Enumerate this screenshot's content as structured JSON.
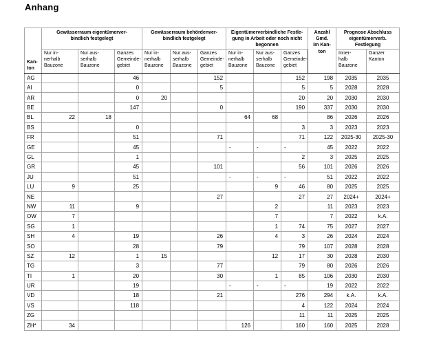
{
  "title": "Anhang",
  "colors": {
    "background": "#ffffff",
    "text": "#000000",
    "grid_thin": "#a8a8a8",
    "grid_thick": "#1f1f1f"
  },
  "table": {
    "header": {
      "kanton": "Kan-\nton",
      "anzahl": "Anzahl\nGmd.\nim Kan-\nton",
      "groups": [
        {
          "label": "Gewässerraum eigentümerver-\nbindlich festgelegt"
        },
        {
          "label": "Gewässerraum behördenver-\nbindlich festgelegt"
        },
        {
          "label": "Eigentümerverbindliche Festle-\ngung in Arbeit oder noch nicht\nbegonnen"
        },
        {
          "label": "Prognose Abschluss\neigentümerverb.\nFestlegung"
        }
      ],
      "subs": [
        "Nur in-\nnerhalb\nBauzone",
        "Nur aus-\nserhalb\nBauzone",
        "Ganzes\nGemeinde-\ngebiet",
        "Nur in-\nnerhalb\nBauzone",
        "Nur aus-\nserhalb\nBauzone",
        "Ganzes\nGemeinde-\ngebiet",
        "Nur in-\nnerhalb\nBauzone",
        "Nur aus-\nserhalb\nBauzone",
        "Ganzes\nGemeinde-\ngebiet",
        "Inner-\nhalb\nBauzone",
        "Ganzer\nKanton"
      ]
    },
    "rows": [
      {
        "kanton": "AG",
        "values": [
          "",
          "",
          "46",
          "",
          "",
          "152",
          "",
          "",
          "152",
          "198",
          "2035",
          "2035"
        ]
      },
      {
        "kanton": "AI",
        "values": [
          "",
          "",
          "0",
          "",
          "",
          "5",
          "",
          "",
          "5",
          "5",
          "2028",
          "2028"
        ]
      },
      {
        "kanton": "AR",
        "values": [
          "",
          "",
          "0",
          "20",
          "",
          "",
          "",
          "",
          "20",
          "20",
          "2030",
          "2030"
        ]
      },
      {
        "kanton": "BE",
        "values": [
          "",
          "",
          "147",
          "",
          "",
          "0",
          "",
          "",
          "190",
          "337",
          "2030",
          "2030"
        ]
      },
      {
        "kanton": "BL",
        "values": [
          "22",
          "18",
          "",
          "",
          "",
          "",
          "64",
          "68",
          "",
          "86",
          "2026",
          "2026"
        ]
      },
      {
        "kanton": "BS",
        "values": [
          "",
          "",
          "0",
          "",
          "",
          "",
          "",
          "",
          "3",
          "3",
          "2023",
          "2023"
        ]
      },
      {
        "kanton": "FR",
        "values": [
          "",
          "",
          "51",
          "",
          "",
          "71",
          "",
          "",
          "71",
          "122",
          "2025-30",
          "2025-30"
        ]
      },
      {
        "kanton": "GE",
        "values": [
          "",
          "",
          "45",
          "",
          "",
          "",
          "-",
          "-",
          "-",
          "45",
          "2022",
          "2022"
        ]
      },
      {
        "kanton": "GL",
        "values": [
          "",
          "",
          "1",
          "",
          "",
          "",
          "",
          "",
          "2",
          "3",
          "2025",
          "2025"
        ]
      },
      {
        "kanton": "GR",
        "values": [
          "",
          "",
          "45",
          "",
          "",
          "101",
          "",
          "",
          "56",
          "101",
          "2026",
          "2026"
        ]
      },
      {
        "kanton": "JU",
        "values": [
          "",
          "",
          "51",
          "",
          "",
          "",
          "-",
          "-",
          "-",
          "51",
          "2022",
          "2022"
        ]
      },
      {
        "kanton": "LU",
        "values": [
          "9",
          "",
          "25",
          "",
          "",
          "",
          "",
          "9",
          "46",
          "80",
          "2025",
          "2025"
        ]
      },
      {
        "kanton": "NE",
        "values": [
          "",
          "",
          "",
          "",
          "",
          "27",
          "",
          "",
          "27",
          "27",
          "2024+",
          "2024+"
        ]
      },
      {
        "kanton": "NW",
        "values": [
          "11",
          "",
          "9",
          "",
          "",
          "",
          "",
          "2",
          "",
          "11",
          "2023",
          "2023"
        ]
      },
      {
        "kanton": "OW",
        "values": [
          "7",
          "",
          "",
          "",
          "",
          "",
          "",
          "7",
          "",
          "7",
          "2022",
          "k.A."
        ]
      },
      {
        "kanton": "SG",
        "values": [
          "1",
          "",
          "",
          "",
          "",
          "",
          "",
          "1",
          "74",
          "75",
          "2027",
          "2027"
        ]
      },
      {
        "kanton": "SH",
        "values": [
          "4",
          "",
          "19",
          "",
          "",
          "26",
          "",
          "4",
          "3",
          "26",
          "2024",
          "2024"
        ]
      },
      {
        "kanton": "SO",
        "values": [
          "",
          "",
          "28",
          "",
          "",
          "79",
          "",
          "",
          "79",
          "107",
          "2028",
          "2028"
        ]
      },
      {
        "kanton": "SZ",
        "values": [
          "12",
          "",
          "1",
          "15",
          "",
          "",
          "",
          "12",
          "17",
          "30",
          "2028",
          "2030"
        ]
      },
      {
        "kanton": "TG",
        "values": [
          "",
          "",
          "3",
          "",
          "",
          "77",
          "",
          "",
          "79",
          "80",
          "2026",
          "2026"
        ]
      },
      {
        "kanton": "TI",
        "values": [
          "1",
          "",
          "20",
          "",
          "",
          "30",
          "",
          "1",
          "85",
          "106",
          "2030",
          "2030"
        ]
      },
      {
        "kanton": "UR",
        "values": [
          "",
          "",
          "19",
          "",
          "",
          "",
          "-",
          "-",
          "-",
          "19",
          "2022",
          "2022"
        ]
      },
      {
        "kanton": "VD",
        "values": [
          "",
          "",
          "18",
          "",
          "",
          "21",
          "",
          "",
          "276",
          "294",
          "k.A.",
          "k.A."
        ]
      },
      {
        "kanton": "VS",
        "values": [
          "",
          "",
          "118",
          "",
          "",
          "",
          "",
          "",
          "4",
          "122",
          "2024",
          "2024"
        ]
      },
      {
        "kanton": "ZG",
        "values": [
          "",
          "",
          "",
          "",
          "",
          "",
          "",
          "",
          "11",
          "11",
          "2025",
          "2025"
        ]
      },
      {
        "kanton": "ZH*",
        "values": [
          "34",
          "",
          "",
          "",
          "",
          "",
          "126",
          "",
          "160",
          "160",
          "2025",
          "2028"
        ]
      }
    ]
  }
}
